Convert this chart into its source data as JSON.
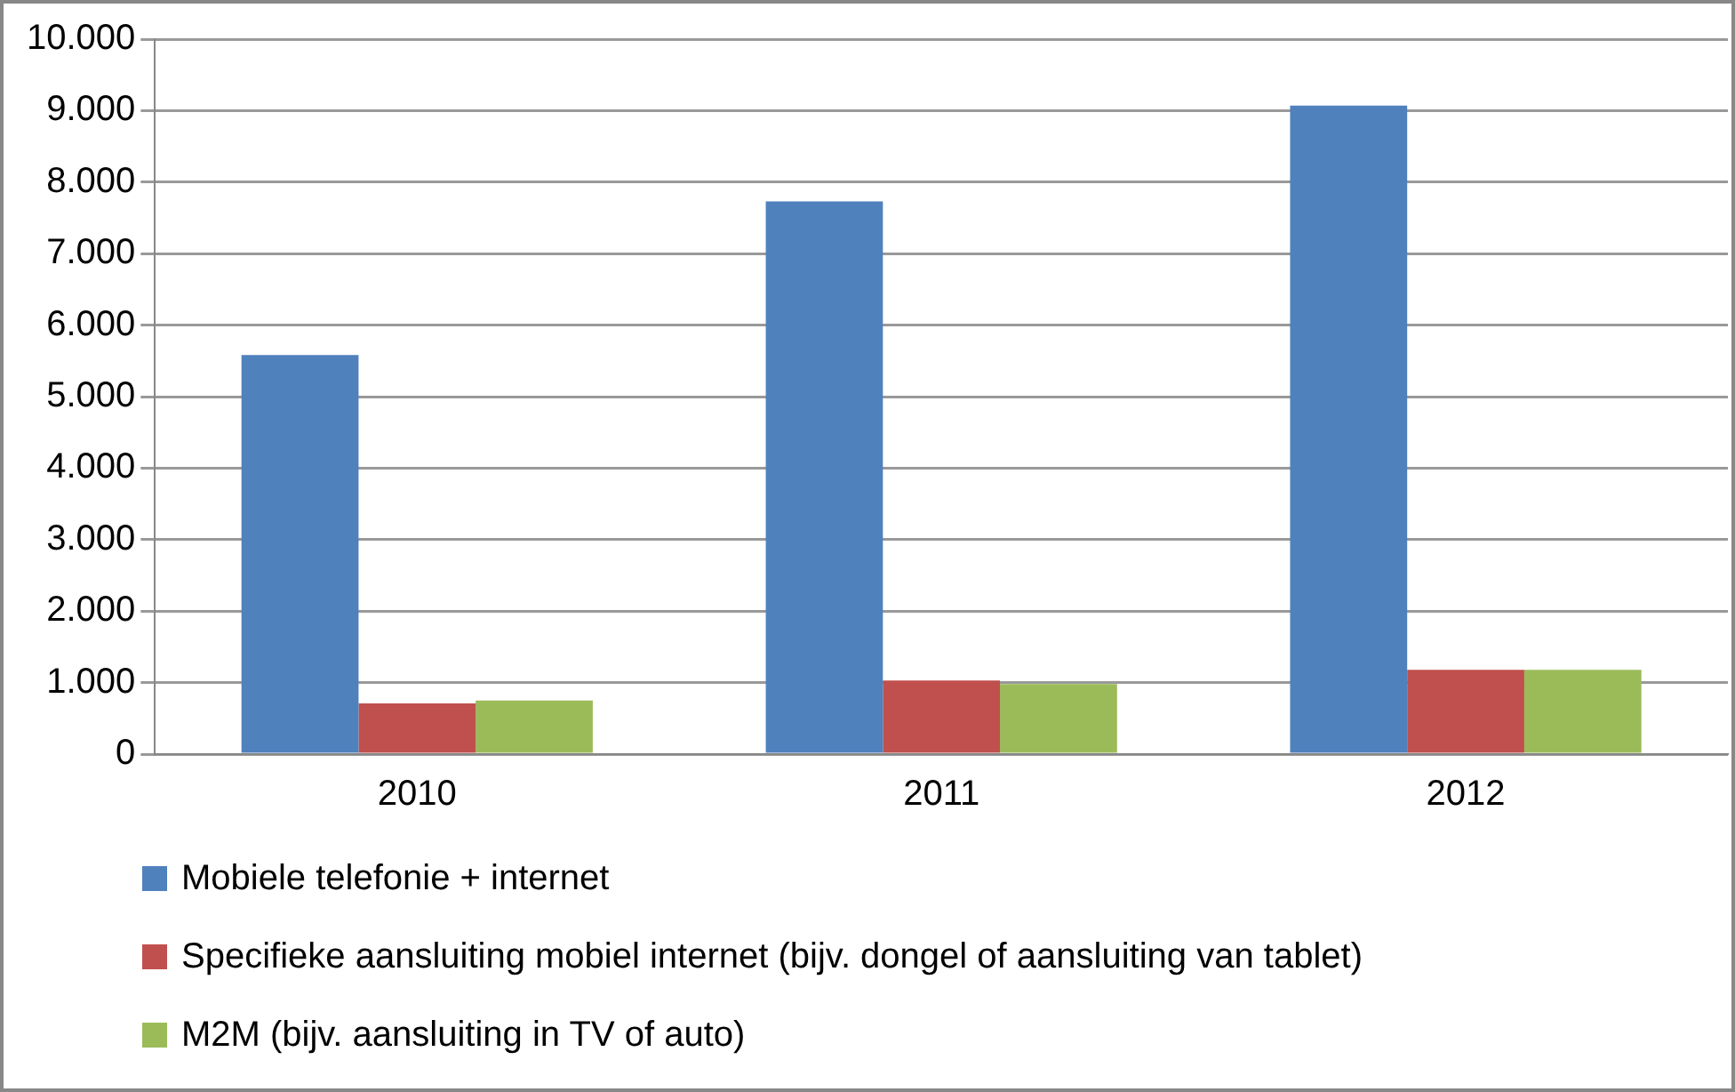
{
  "chart_data": {
    "type": "bar",
    "categories": [
      "2010",
      "2011",
      "2012"
    ],
    "series": [
      {
        "name": "Mobiele telefonie + internet",
        "color": "#4f81bd",
        "values": [
          5580,
          7730,
          9070
        ]
      },
      {
        "name": "Specifieke aansluiting mobiel internet (bijv. dongel of aansluiting van tablet)",
        "color": "#c0504d",
        "values": [
          710,
          1030,
          1180
        ]
      },
      {
        "name": "M2M (bijv. aansluiting in TV of auto)",
        "color": "#9bbb59",
        "values": [
          750,
          980,
          1180
        ]
      }
    ],
    "ylim": [
      0,
      10000
    ],
    "yticks": [
      {
        "value": 0,
        "label": "0"
      },
      {
        "value": 1000,
        "label": "1.000"
      },
      {
        "value": 2000,
        "label": "2.000"
      },
      {
        "value": 3000,
        "label": "3.000"
      },
      {
        "value": 4000,
        "label": "4.000"
      },
      {
        "value": 5000,
        "label": "5.000"
      },
      {
        "value": 6000,
        "label": "6.000"
      },
      {
        "value": 7000,
        "label": "7.000"
      },
      {
        "value": 8000,
        "label": "8.000"
      },
      {
        "value": 9000,
        "label": "9.000"
      },
      {
        "value": 10000,
        "label": "10.000"
      }
    ],
    "grid": "y",
    "legend": "bottom"
  }
}
